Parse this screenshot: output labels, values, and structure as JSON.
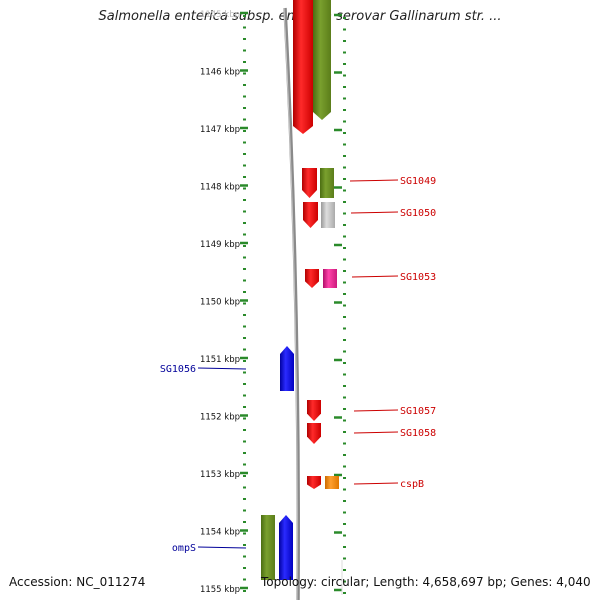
{
  "title": "Salmonella enterica subsp. enterica serovar Gallinarum str. ...",
  "accession": "Accession: NC_011274",
  "summary": "Topology: circular; Length: 4,658,697 bp; Genes: 4,040",
  "colors": {
    "backbone": "#8a8a8a",
    "tick": "#2a8a2a",
    "label_forward": "#cc0000",
    "label_reverse": "#000099"
  },
  "ruler_labels": [
    "1145 kbp",
    "1146 kbp",
    "1147 kbp",
    "1148 kbp",
    "1149 kbp",
    "1150 kbp",
    "1151 kbp",
    "1152 kbp",
    "1153 kbp",
    "1154 kbp",
    "1155 kbp"
  ],
  "genes": [
    {
      "label": "",
      "strand": "+",
      "color": "#ee0000",
      "partner": "#6b8e23"
    },
    {
      "label": "SG1049",
      "strand": "+",
      "color": "#ee0000",
      "partner": "#6b8e23"
    },
    {
      "label": "SG1050",
      "strand": "+",
      "color": "#ee0000",
      "partner": "#bdbdbd"
    },
    {
      "label": "SG1053",
      "strand": "+",
      "color": "#ee0000",
      "partner": "#e0208a"
    },
    {
      "label": "SG1056",
      "strand": "-",
      "color": "#0000ee",
      "partner": ""
    },
    {
      "label": "SG1057",
      "strand": "+",
      "color": "#ee0000",
      "partner": ""
    },
    {
      "label": "SG1058",
      "strand": "+",
      "color": "#ee0000",
      "partner": ""
    },
    {
      "label": "cspB",
      "strand": "+",
      "color": "#ee0000",
      "partner": "#ff8c00"
    },
    {
      "label": "ompS",
      "strand": "-",
      "color": "#0000ee",
      "partner": "#6b8e23"
    }
  ]
}
